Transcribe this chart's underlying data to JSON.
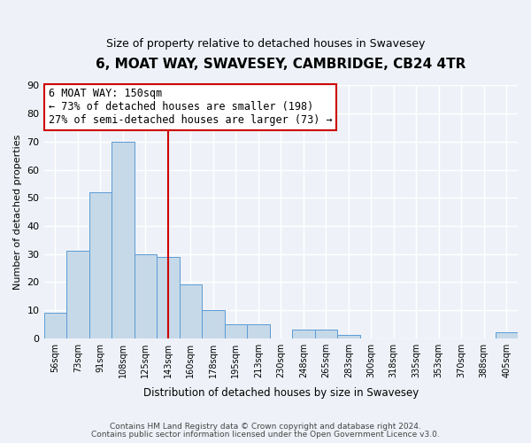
{
  "title": "6, MOAT WAY, SWAVESEY, CAMBRIDGE, CB24 4TR",
  "subtitle": "Size of property relative to detached houses in Swavesey",
  "xlabel": "Distribution of detached houses by size in Swavesey",
  "ylabel": "Number of detached properties",
  "bar_color": "#c6d9e8",
  "bar_edge_color": "#5b9bd5",
  "background_color": "#eef2f8",
  "grid_color": "#ffffff",
  "bin_labels": [
    "56sqm",
    "73sqm",
    "91sqm",
    "108sqm",
    "125sqm",
    "143sqm",
    "160sqm",
    "178sqm",
    "195sqm",
    "213sqm",
    "230sqm",
    "248sqm",
    "265sqm",
    "283sqm",
    "300sqm",
    "318sqm",
    "335sqm",
    "353sqm",
    "370sqm",
    "388sqm",
    "405sqm"
  ],
  "bar_heights": [
    9,
    31,
    52,
    70,
    30,
    29,
    19,
    10,
    5,
    5,
    0,
    3,
    3,
    1,
    0,
    0,
    0,
    0,
    0,
    0,
    2
  ],
  "ylim": [
    0,
    90
  ],
  "yticks": [
    0,
    10,
    20,
    30,
    40,
    50,
    60,
    70,
    80,
    90
  ],
  "vline_x": 5.5,
  "vline_color": "#cc0000",
  "annotation_line1": "6 MOAT WAY: 150sqm",
  "annotation_line2": "← 73% of detached houses are smaller (198)",
  "annotation_line3": "27% of semi-detached houses are larger (73) →",
  "annotation_box_color": "#ffffff",
  "annotation_box_edge": "#cc0000",
  "footer_line1": "Contains HM Land Registry data © Crown copyright and database right 2024.",
  "footer_line2": "Contains public sector information licensed under the Open Government Licence v3.0."
}
